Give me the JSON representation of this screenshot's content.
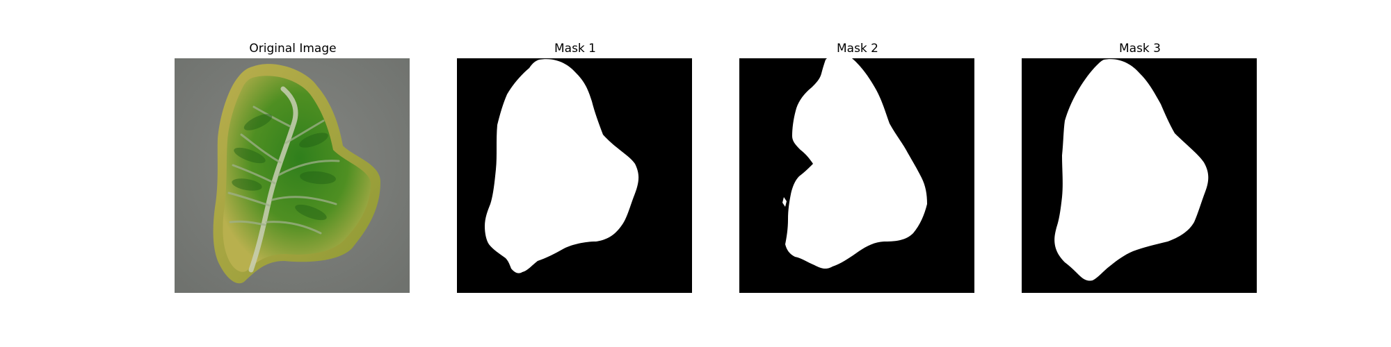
{
  "panels": [
    {
      "title": "Original Image"
    },
    {
      "title": "Mask 1"
    },
    {
      "title": "Mask 2"
    },
    {
      "title": "Mask 3"
    }
  ],
  "colors": {
    "mask_background": "#000000",
    "mask_foreground": "#ffffff",
    "photo_background": "#7b7d7a",
    "leaf_green": "#4f8f22",
    "leaf_yellow": "#b9ae4d"
  }
}
